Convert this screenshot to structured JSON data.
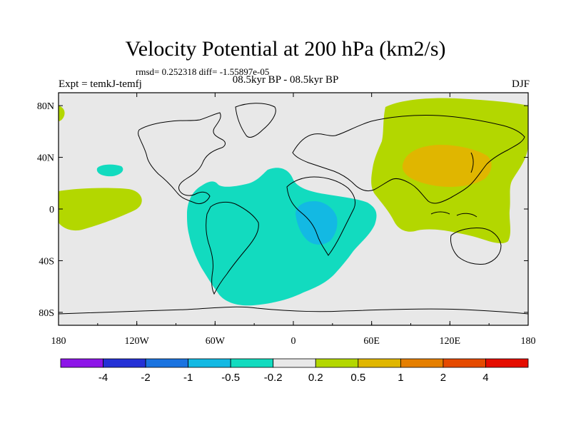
{
  "title": "Velocity Potential at 200 hPa (km2/s)",
  "stats": "rmsd= 0.252318 diff= -1.55897e-05",
  "experiment": "Expt = temkJ-temfj",
  "period": "08.5kyr BP - 08.5kyr BP",
  "season": "DJF",
  "axes": {
    "lon_ticks": [
      {
        "value": -180,
        "label": "180"
      },
      {
        "value": -120,
        "label": "120W"
      },
      {
        "value": -60,
        "label": "60W"
      },
      {
        "value": 0,
        "label": "0"
      },
      {
        "value": 60,
        "label": "60E"
      },
      {
        "value": 120,
        "label": "120E"
      },
      {
        "value": 180,
        "label": "180"
      }
    ],
    "lat_ticks": [
      {
        "value": 80,
        "label": "80N"
      },
      {
        "value": 40,
        "label": "40N"
      },
      {
        "value": 0,
        "label": "0"
      },
      {
        "value": -40,
        "label": "40S"
      },
      {
        "value": -80,
        "label": "80S"
      }
    ],
    "lon_range": [
      -180,
      180
    ],
    "lat_range": [
      -90,
      90
    ]
  },
  "colorbar": {
    "colors": [
      "#8d15e8",
      "#2431d6",
      "#1a73e0",
      "#13b9e3",
      "#12dbbf",
      "#e8e8e8",
      "#b3d700",
      "#e0b600",
      "#e57f00",
      "#e54a00",
      "#e50d00"
    ],
    "labels": [
      "-4",
      "-2",
      "-1",
      "-0.5",
      "-0.2",
      "0.2",
      "0.5",
      "1",
      "2",
      "4"
    ]
  },
  "map_colors": {
    "background": "#e8e8e8",
    "negative_weak": "#12dbbf",
    "negative_mid": "#13b9e3",
    "positive_weak": "#b3d700",
    "positive_mid": "#e0b600",
    "coast": "#000000"
  }
}
